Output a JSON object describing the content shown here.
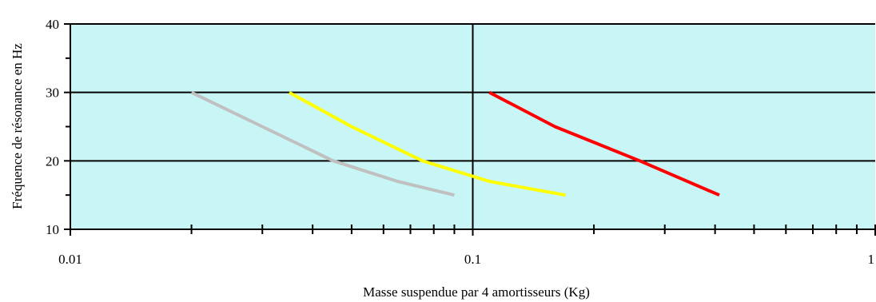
{
  "chart_data": {
    "type": "line",
    "title": "",
    "xlabel": "Masse suspendue par 4 amortisseurs (Kg)",
    "ylabel": "Fréquence de résonance en Hz",
    "xscale": "log",
    "xlim": [
      0.01,
      1
    ],
    "ylim": [
      10,
      40
    ],
    "x_ticks": [
      0.01,
      0.1,
      1
    ],
    "x_tick_labels": [
      "0.01",
      "0.1",
      "1"
    ],
    "y_ticks": [
      10,
      20,
      30,
      40
    ],
    "y_tick_labels": [
      "10",
      "20",
      "30",
      "40"
    ],
    "grid": "major",
    "legend": "none",
    "plot_background": "#c8f5f5",
    "series": [
      {
        "color": "#c0c0c0",
        "x": [
          0.02,
          0.03,
          0.045,
          0.065,
          0.09
        ],
        "y": [
          30,
          25,
          20,
          17,
          15
        ]
      },
      {
        "color": "#ffff00",
        "x": [
          0.035,
          0.05,
          0.075,
          0.11,
          0.17
        ],
        "y": [
          30,
          25,
          20,
          17,
          15
        ]
      },
      {
        "color": "#ff0000",
        "x": [
          0.11,
          0.16,
          0.26,
          0.41
        ],
        "y": [
          30,
          25,
          20,
          15
        ]
      }
    ]
  }
}
